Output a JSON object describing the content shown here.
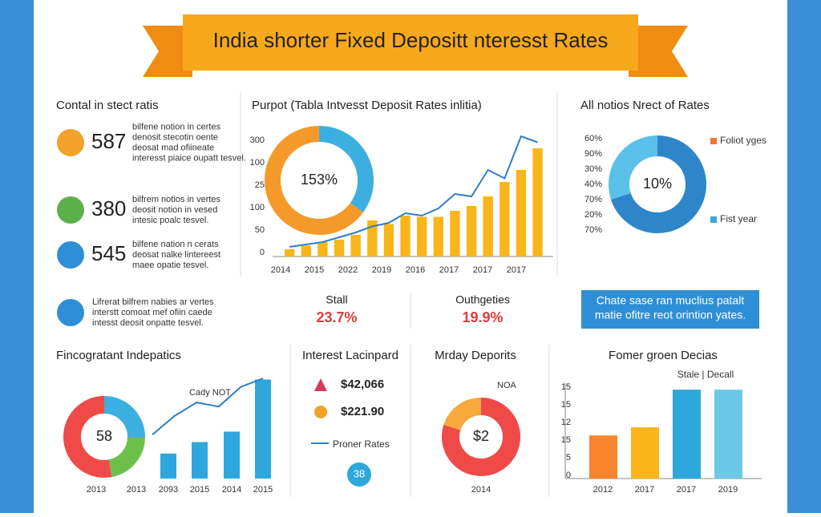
{
  "header": {
    "title": "India shorter Fixed Depositt nteresst Rates"
  },
  "rates": {
    "title": "Contal in stect ratis",
    "items": [
      {
        "value": "587",
        "lines": [
          "bilfene notion in certes",
          "denosit stecotin oente",
          "deosat mad ofiineate",
          "interesst piaice oupatt tesvel."
        ]
      },
      {
        "value": "380",
        "lines": [
          "bilfrem notios in vertes",
          "deosit notion in vesed",
          "intesic poalc tesvel."
        ]
      },
      {
        "value": "545",
        "lines": [
          "bilfene nation n cerats",
          "deosat nalke lintereest",
          "maee opatie tesvel."
        ]
      },
      {
        "lines": [
          "Lifrerat bilfrem nabies ar vertes",
          "interstt comoat mef ofiin caede",
          "intesst deosit onpatte tesvel."
        ]
      }
    ]
  },
  "trend": {
    "title": "Purpot (Tabla Intvesst Deposit Rates inlitia)",
    "y_labels": [
      "300",
      "100",
      "25",
      "100",
      "50",
      "0"
    ],
    "x_labels": [
      "2014",
      "2015",
      "2022",
      "2019",
      "2016",
      "2017",
      "2017",
      "2017"
    ],
    "ylim": [
      0,
      100
    ],
    "bars": {
      "color": "#f9b51a",
      "values": [
        6,
        9,
        12,
        14,
        18,
        30,
        27,
        34,
        33,
        33,
        38,
        42,
        50,
        62,
        72,
        90
      ]
    },
    "line": {
      "color": "#2e7fc4",
      "values": [
        8,
        10,
        12,
        16,
        20,
        25,
        28,
        36,
        34,
        40,
        52,
        50,
        72,
        65,
        100,
        95
      ]
    },
    "donut": {
      "label": "153%",
      "values": [
        35,
        65
      ],
      "colors": [
        "#3bb0e0",
        "#f59a2a"
      ]
    }
  },
  "share": {
    "title": "All notios Nrect of Rates",
    "y_labels": [
      "60%",
      "90%",
      "30%",
      "40%",
      "70%",
      "20%",
      "70%"
    ],
    "donut": {
      "label": "10%",
      "values": [
        70,
        30
      ],
      "colors": [
        "#2e86c9",
        "#5bc0e8"
      ]
    },
    "legend": [
      {
        "name": "Foliot yges",
        "color": "#f0743a"
      },
      {
        "name": "Fist year",
        "color": "#3aa6d8"
      }
    ]
  },
  "stats": [
    {
      "label": "Stall",
      "value": "23.7%"
    },
    {
      "label": "Outhgeties",
      "value": "19.9%"
    }
  ],
  "note": {
    "lines": [
      "Chate sase ran muclius patalt",
      "matie ofitre reot orintion yates."
    ]
  },
  "independence": {
    "title": "Fincogratant Indepatics",
    "donut": {
      "label": "58",
      "values": [
        25,
        22,
        53
      ],
      "colors": [
        "#3bb0e0",
        "#6cc04a",
        "#f04a48"
      ]
    },
    "annotation": "Cady NOT",
    "x_labels": [
      "2013",
      "2013",
      "2093",
      "2015",
      "2014",
      "2015"
    ],
    "ylim": [
      0,
      100
    ],
    "bars": {
      "color": "#2ea7dd",
      "values": [
        24,
        35,
        45,
        95
      ]
    },
    "line": {
      "color": "#2e7fc4",
      "values": [
        42,
        60,
        73,
        69,
        88,
        96
      ]
    }
  },
  "interest": {
    "title": "Interest Lacinpard",
    "amounts": [
      "$42,066",
      "$221.90"
    ],
    "legend": "Proner Rates",
    "badge": "38"
  },
  "deposits": {
    "title": "Mrday Deporits",
    "donut": {
      "label": "$2",
      "values": [
        80,
        20
      ],
      "colors": [
        "#f04a48",
        "#f7a93b"
      ]
    },
    "annotation": "NOA",
    "x_label": "2014"
  },
  "former": {
    "title": "Fomer groen Decias",
    "subtitle": "Stale | Decall",
    "y_labels": [
      "15",
      "15",
      "12",
      "15",
      "5",
      "0"
    ],
    "x_labels": [
      "2012",
      "2017",
      "2017",
      "2019"
    ],
    "ylim": [
      0,
      100
    ],
    "bars": {
      "values": [
        48,
        57,
        99,
        99
      ],
      "colors": [
        "#f7842a",
        "#f9b51a",
        "#2ea7dd",
        "#6cc8e6"
      ]
    }
  }
}
